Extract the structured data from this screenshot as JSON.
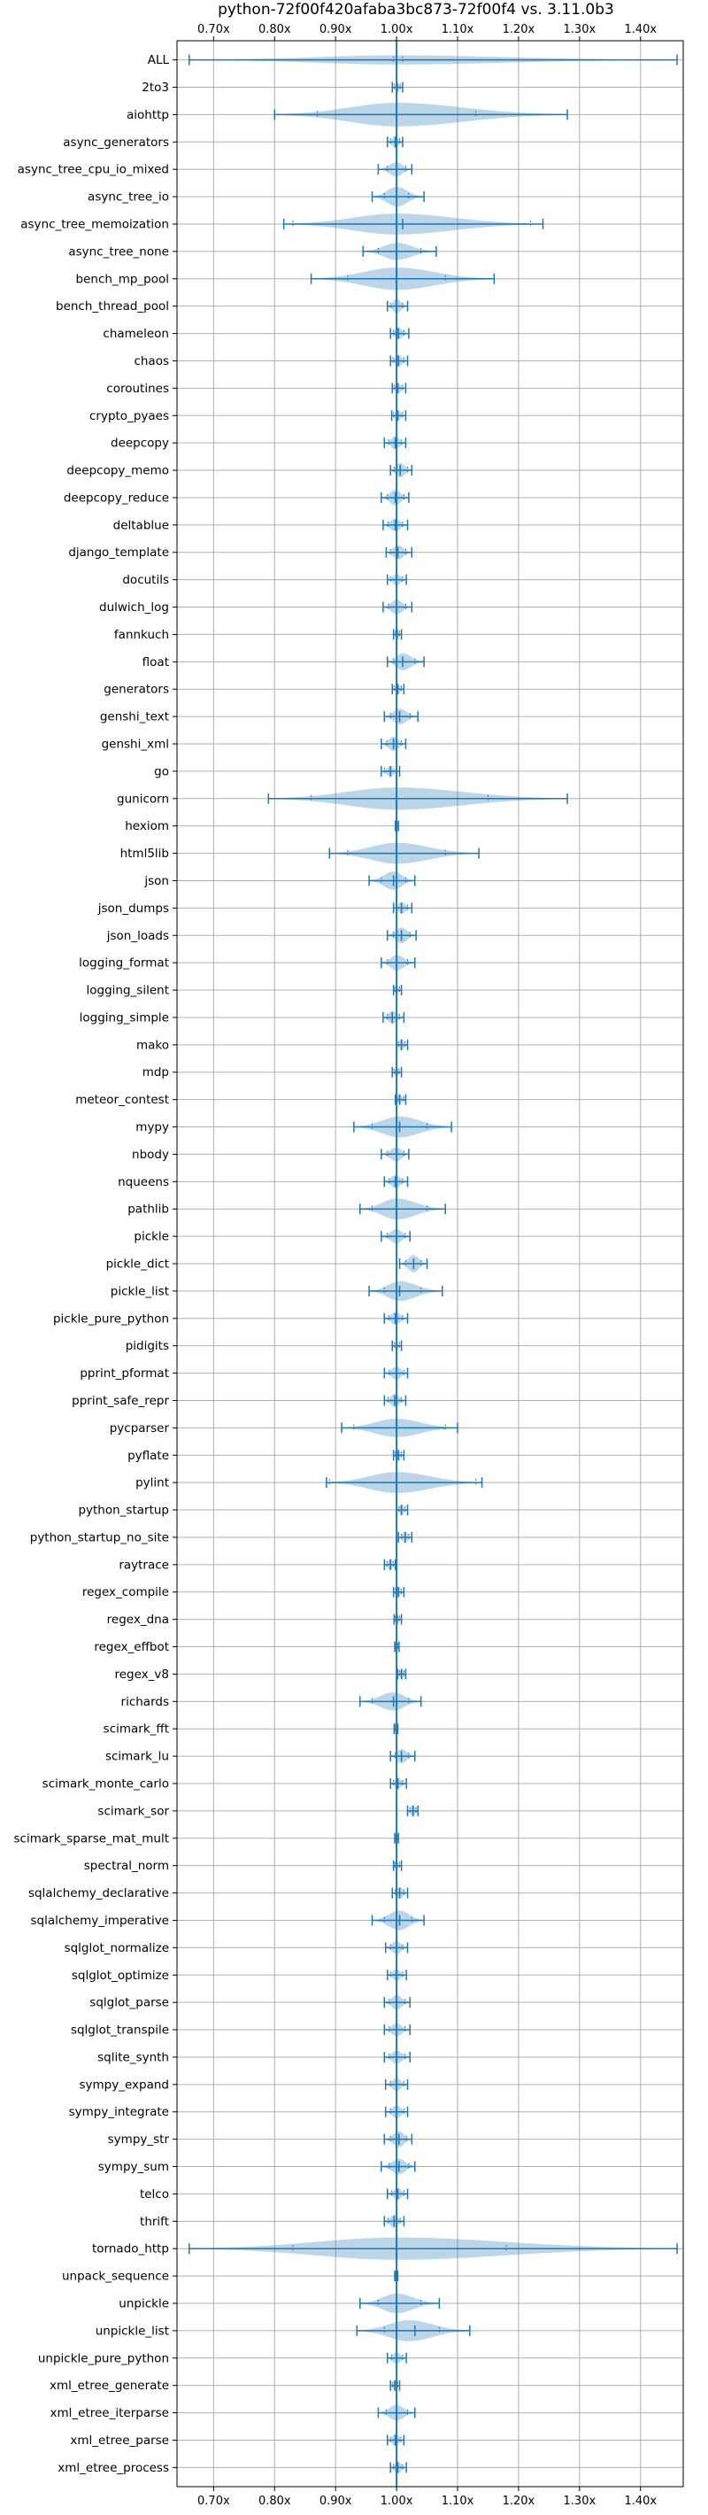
{
  "chart_data": {
    "type": "violin",
    "title": "python-72f00f420afaba3bc873-72f00f4 vs. 3.11.0b3",
    "xlabel": "",
    "ylabel": "",
    "xlim": [
      0.64,
      1.47
    ],
    "xticks": [
      0.7,
      0.8,
      0.9,
      1.0,
      1.1,
      1.2,
      1.3,
      1.4
    ],
    "xtick_labels": [
      "0.70x",
      "0.80x",
      "0.90x",
      "1.00x",
      "1.10x",
      "1.20x",
      "1.30x",
      "1.40x"
    ],
    "xaxis_position": "top-and-bottom",
    "grid": true,
    "baseline": 1.0,
    "categories": [
      "ALL",
      "2to3",
      "aiohttp",
      "async_generators",
      "async_tree_cpu_io_mixed",
      "async_tree_io",
      "async_tree_memoization",
      "async_tree_none",
      "bench_mp_pool",
      "bench_thread_pool",
      "chameleon",
      "chaos",
      "coroutines",
      "crypto_pyaes",
      "deepcopy",
      "deepcopy_memo",
      "deepcopy_reduce",
      "deltablue",
      "django_template",
      "docutils",
      "dulwich_log",
      "fannkuch",
      "float",
      "generators",
      "genshi_text",
      "genshi_xml",
      "go",
      "gunicorn",
      "hexiom",
      "html5lib",
      "json",
      "json_dumps",
      "json_loads",
      "logging_format",
      "logging_silent",
      "logging_simple",
      "mako",
      "mdp",
      "meteor_contest",
      "mypy",
      "nbody",
      "nqueens",
      "pathlib",
      "pickle",
      "pickle_dict",
      "pickle_list",
      "pickle_pure_python",
      "pidigits",
      "pprint_pformat",
      "pprint_safe_repr",
      "pycparser",
      "pyflate",
      "pylint",
      "python_startup",
      "python_startup_no_site",
      "raytrace",
      "regex_compile",
      "regex_dna",
      "regex_effbot",
      "regex_v8",
      "richards",
      "scimark_fft",
      "scimark_lu",
      "scimark_monte_carlo",
      "scimark_sor",
      "scimark_sparse_mat_mult",
      "spectral_norm",
      "sqlalchemy_declarative",
      "sqlalchemy_imperative",
      "sqlglot_normalize",
      "sqlglot_optimize",
      "sqlglot_parse",
      "sqlglot_transpile",
      "sqlite_synth",
      "sympy_expand",
      "sympy_integrate",
      "sympy_str",
      "sympy_sum",
      "telco",
      "thrift",
      "tornado_http",
      "unpack_sequence",
      "unpickle",
      "unpickle_list",
      "unpickle_pure_python",
      "xml_etree_generate",
      "xml_etree_iterparse",
      "xml_etree_parse",
      "xml_etree_process"
    ],
    "series": [
      {
        "min": 0.66,
        "max": 1.46,
        "q1": 0.995,
        "q3": 1.01,
        "center": 1.0,
        "peak": 1.0,
        "width": 0.35
      },
      {
        "min": 0.993,
        "max": 1.01,
        "q1": 0.996,
        "q3": 1.006,
        "center": 1.001,
        "peak": 1.001,
        "width": 0.3
      },
      {
        "min": 0.8,
        "max": 1.28,
        "q1": 0.87,
        "q3": 1.13,
        "center": 1.0,
        "peak": 1.0,
        "width": 0.9
      },
      {
        "min": 0.985,
        "max": 1.01,
        "q1": 0.99,
        "q3": 1.005,
        "center": 0.998,
        "peak": 0.998,
        "width": 0.45
      },
      {
        "min": 0.97,
        "max": 1.025,
        "q1": 0.985,
        "q3": 1.015,
        "center": 1.0,
        "peak": 1.0,
        "width": 0.55
      },
      {
        "min": 0.96,
        "max": 1.045,
        "q1": 0.98,
        "q3": 1.02,
        "center": 1.0,
        "peak": 1.0,
        "width": 0.75
      },
      {
        "min": 0.815,
        "max": 1.24,
        "q1": 0.83,
        "q3": 1.22,
        "center": 1.01,
        "peak": 1.0,
        "width": 0.8
      },
      {
        "min": 0.945,
        "max": 1.065,
        "q1": 0.97,
        "q3": 1.04,
        "center": 1.0,
        "peak": 1.0,
        "width": 0.65
      },
      {
        "min": 0.86,
        "max": 1.16,
        "q1": 0.92,
        "q3": 1.08,
        "center": 1.0,
        "peak": 1.0,
        "width": 0.85
      },
      {
        "min": 0.985,
        "max": 1.018,
        "q1": 0.99,
        "q3": 1.01,
        "center": 1.0,
        "peak": 1.0,
        "width": 0.55
      },
      {
        "min": 0.99,
        "max": 1.02,
        "q1": 0.995,
        "q3": 1.012,
        "center": 1.003,
        "peak": 1.003,
        "width": 0.45
      },
      {
        "min": 0.99,
        "max": 1.018,
        "q1": 0.994,
        "q3": 1.012,
        "center": 1.003,
        "peak": 1.003,
        "width": 0.45
      },
      {
        "min": 0.993,
        "max": 1.015,
        "q1": 0.996,
        "q3": 1.01,
        "center": 1.002,
        "peak": 1.002,
        "width": 0.4
      },
      {
        "min": 0.992,
        "max": 1.015,
        "q1": 0.995,
        "q3": 1.01,
        "center": 1.002,
        "peak": 1.002,
        "width": 0.4
      },
      {
        "min": 0.98,
        "max": 1.015,
        "q1": 0.987,
        "q3": 1.008,
        "center": 0.998,
        "peak": 0.998,
        "width": 0.5
      },
      {
        "min": 0.99,
        "max": 1.025,
        "q1": 0.996,
        "q3": 1.018,
        "center": 1.006,
        "peak": 1.006,
        "width": 0.55
      },
      {
        "min": 0.975,
        "max": 1.02,
        "q1": 0.985,
        "q3": 1.012,
        "center": 0.998,
        "peak": 0.998,
        "width": 0.6
      },
      {
        "min": 0.978,
        "max": 1.018,
        "q1": 0.986,
        "q3": 1.01,
        "center": 0.998,
        "peak": 0.998,
        "width": 0.5
      },
      {
        "min": 0.983,
        "max": 1.025,
        "q1": 0.99,
        "q3": 1.015,
        "center": 1.002,
        "peak": 1.002,
        "width": 0.55
      },
      {
        "min": 0.985,
        "max": 1.016,
        "q1": 0.99,
        "q3": 1.01,
        "center": 1.0,
        "peak": 1.0,
        "width": 0.45
      },
      {
        "min": 0.978,
        "max": 1.025,
        "q1": 0.987,
        "q3": 1.015,
        "center": 1.0,
        "peak": 1.0,
        "width": 0.55
      },
      {
        "min": 0.995,
        "max": 1.008,
        "q1": 0.998,
        "q3": 1.005,
        "center": 1.001,
        "peak": 1.001,
        "width": 0.35
      },
      {
        "min": 0.985,
        "max": 1.045,
        "q1": 0.995,
        "q3": 1.03,
        "center": 1.01,
        "peak": 1.01,
        "width": 0.65
      },
      {
        "min": 0.993,
        "max": 1.012,
        "q1": 0.996,
        "q3": 1.008,
        "center": 1.002,
        "peak": 1.002,
        "width": 0.4
      },
      {
        "min": 0.98,
        "max": 1.035,
        "q1": 0.99,
        "q3": 1.022,
        "center": 1.005,
        "peak": 1.005,
        "width": 0.6
      },
      {
        "min": 0.975,
        "max": 1.015,
        "q1": 0.984,
        "q3": 1.008,
        "center": 0.995,
        "peak": 0.995,
        "width": 0.55
      },
      {
        "min": 0.975,
        "max": 1.005,
        "q1": 0.98,
        "q3": 1.0,
        "center": 0.99,
        "peak": 0.99,
        "width": 0.4
      },
      {
        "min": 0.79,
        "max": 1.28,
        "q1": 0.86,
        "q3": 1.15,
        "center": 1.0,
        "peak": 1.0,
        "width": 0.85
      },
      {
        "min": 0.998,
        "max": 1.003,
        "q1": 0.999,
        "q3": 1.002,
        "center": 1.0,
        "peak": 1.0,
        "width": 0.25
      },
      {
        "min": 0.89,
        "max": 1.135,
        "q1": 0.92,
        "q3": 1.08,
        "center": 1.0,
        "peak": 1.0,
        "width": 0.8
      },
      {
        "min": 0.955,
        "max": 1.03,
        "q1": 0.975,
        "q3": 1.015,
        "center": 0.995,
        "peak": 0.995,
        "width": 0.7
      },
      {
        "min": 0.995,
        "max": 1.025,
        "q1": 1.0,
        "q3": 1.018,
        "center": 1.008,
        "peak": 1.008,
        "width": 0.45
      },
      {
        "min": 0.985,
        "max": 1.032,
        "q1": 0.995,
        "q3": 1.022,
        "center": 1.008,
        "peak": 1.008,
        "width": 0.6
      },
      {
        "min": 0.975,
        "max": 1.03,
        "q1": 0.985,
        "q3": 1.018,
        "center": 1.0,
        "peak": 1.0,
        "width": 0.6
      },
      {
        "min": 0.995,
        "max": 1.008,
        "q1": 0.997,
        "q3": 1.005,
        "center": 1.0,
        "peak": 1.0,
        "width": 0.35
      },
      {
        "min": 0.978,
        "max": 1.012,
        "q1": 0.985,
        "q3": 1.005,
        "center": 0.993,
        "peak": 0.993,
        "width": 0.5
      },
      {
        "min": 1.0,
        "max": 1.018,
        "q1": 1.003,
        "q3": 1.014,
        "center": 1.008,
        "peak": 1.008,
        "width": 0.45
      },
      {
        "min": 0.993,
        "max": 1.008,
        "q1": 0.996,
        "q3": 1.004,
        "center": 1.0,
        "peak": 1.0,
        "width": 0.35
      },
      {
        "min": 0.998,
        "max": 1.015,
        "q1": 1.001,
        "q3": 1.012,
        "center": 1.005,
        "peak": 1.005,
        "width": 0.4
      },
      {
        "min": 0.93,
        "max": 1.09,
        "q1": 0.96,
        "q3": 1.05,
        "center": 1.005,
        "peak": 1.005,
        "width": 0.8
      },
      {
        "min": 0.975,
        "max": 1.02,
        "q1": 0.985,
        "q3": 1.012,
        "center": 1.0,
        "peak": 1.0,
        "width": 0.55
      },
      {
        "min": 0.98,
        "max": 1.018,
        "q1": 0.988,
        "q3": 1.01,
        "center": 0.998,
        "peak": 0.998,
        "width": 0.5
      },
      {
        "min": 0.94,
        "max": 1.08,
        "q1": 0.96,
        "q3": 1.05,
        "center": 1.0,
        "peak": 1.0,
        "width": 0.8
      },
      {
        "min": 0.975,
        "max": 1.022,
        "q1": 0.985,
        "q3": 1.014,
        "center": 1.0,
        "peak": 1.0,
        "width": 0.55
      },
      {
        "min": 1.005,
        "max": 1.05,
        "q1": 1.015,
        "q3": 1.04,
        "center": 1.028,
        "peak": 1.028,
        "width": 0.65
      },
      {
        "min": 0.955,
        "max": 1.075,
        "q1": 0.98,
        "q3": 1.04,
        "center": 1.005,
        "peak": 1.005,
        "width": 0.75
      },
      {
        "min": 0.98,
        "max": 1.018,
        "q1": 0.987,
        "q3": 1.01,
        "center": 0.998,
        "peak": 0.998,
        "width": 0.5
      },
      {
        "min": 0.993,
        "max": 1.008,
        "q1": 0.996,
        "q3": 1.005,
        "center": 1.0,
        "peak": 1.0,
        "width": 0.35
      },
      {
        "min": 0.98,
        "max": 1.018,
        "q1": 0.988,
        "q3": 1.012,
        "center": 1.0,
        "peak": 1.0,
        "width": 0.5
      },
      {
        "min": 0.98,
        "max": 1.015,
        "q1": 0.986,
        "q3": 1.008,
        "center": 0.997,
        "peak": 0.997,
        "width": 0.5
      },
      {
        "min": 0.91,
        "max": 1.1,
        "q1": 0.93,
        "q3": 1.08,
        "center": 1.0,
        "peak": 1.0,
        "width": 0.7
      },
      {
        "min": 0.995,
        "max": 1.012,
        "q1": 0.998,
        "q3": 1.008,
        "center": 1.003,
        "peak": 1.003,
        "width": 0.4
      },
      {
        "min": 0.885,
        "max": 1.14,
        "q1": 0.89,
        "q3": 1.13,
        "center": 1.0,
        "peak": 1.0,
        "width": 0.8
      },
      {
        "min": 1.0,
        "max": 1.018,
        "q1": 1.004,
        "q3": 1.014,
        "center": 1.008,
        "peak": 1.008,
        "width": 0.4
      },
      {
        "min": 1.003,
        "max": 1.025,
        "q1": 1.008,
        "q3": 1.02,
        "center": 1.014,
        "peak": 1.014,
        "width": 0.45
      },
      {
        "min": 0.98,
        "max": 0.998,
        "q1": 0.984,
        "q3": 0.995,
        "center": 0.99,
        "peak": 0.99,
        "width": 0.45
      },
      {
        "min": 0.995,
        "max": 1.012,
        "q1": 0.998,
        "q3": 1.008,
        "center": 1.003,
        "peak": 1.003,
        "width": 0.4
      },
      {
        "min": 0.996,
        "max": 1.008,
        "q1": 0.998,
        "q3": 1.005,
        "center": 1.001,
        "peak": 1.001,
        "width": 0.35
      },
      {
        "min": 0.997,
        "max": 1.004,
        "q1": 0.998,
        "q3": 1.002,
        "center": 1.0,
        "peak": 1.0,
        "width": 0.3
      },
      {
        "min": 1.002,
        "max": 1.015,
        "q1": 1.005,
        "q3": 1.012,
        "center": 1.008,
        "peak": 1.008,
        "width": 0.4
      },
      {
        "min": 0.94,
        "max": 1.04,
        "q1": 0.96,
        "q3": 1.02,
        "center": 0.995,
        "peak": 0.995,
        "width": 0.7
      },
      {
        "min": 0.996,
        "max": 1.002,
        "q1": 0.997,
        "q3": 1.001,
        "center": 0.999,
        "peak": 0.999,
        "width": 0.3
      },
      {
        "min": 0.99,
        "max": 1.03,
        "q1": 0.998,
        "q3": 1.02,
        "center": 1.008,
        "peak": 1.008,
        "width": 0.55
      },
      {
        "min": 0.99,
        "max": 1.016,
        "q1": 0.995,
        "q3": 1.01,
        "center": 1.002,
        "peak": 1.002,
        "width": 0.45
      },
      {
        "min": 1.018,
        "max": 1.035,
        "q1": 1.022,
        "q3": 1.032,
        "center": 1.027,
        "peak": 1.027,
        "width": 0.45
      },
      {
        "min": 0.997,
        "max": 1.003,
        "q1": 0.998,
        "q3": 1.002,
        "center": 1.0,
        "peak": 1.0,
        "width": 0.3
      },
      {
        "min": 0.995,
        "max": 1.008,
        "q1": 0.997,
        "q3": 1.005,
        "center": 1.0,
        "peak": 1.0,
        "width": 0.35
      },
      {
        "min": 0.993,
        "max": 1.018,
        "q1": 0.998,
        "q3": 1.012,
        "center": 1.005,
        "peak": 1.005,
        "width": 0.45
      },
      {
        "min": 0.96,
        "max": 1.045,
        "q1": 0.98,
        "q3": 1.025,
        "center": 1.005,
        "peak": 1.005,
        "width": 0.75
      },
      {
        "min": 0.982,
        "max": 1.018,
        "q1": 0.99,
        "q3": 1.01,
        "center": 1.0,
        "peak": 1.0,
        "width": 0.5
      },
      {
        "min": 0.985,
        "max": 1.016,
        "q1": 0.99,
        "q3": 1.01,
        "center": 1.0,
        "peak": 1.0,
        "width": 0.45
      },
      {
        "min": 0.98,
        "max": 1.022,
        "q1": 0.988,
        "q3": 1.014,
        "center": 1.0,
        "peak": 1.0,
        "width": 0.55
      },
      {
        "min": 0.98,
        "max": 1.022,
        "q1": 0.988,
        "q3": 1.014,
        "center": 1.0,
        "peak": 1.0,
        "width": 0.5
      },
      {
        "min": 0.98,
        "max": 1.022,
        "q1": 0.988,
        "q3": 1.014,
        "center": 1.0,
        "peak": 1.0,
        "width": 0.5
      },
      {
        "min": 0.982,
        "max": 1.018,
        "q1": 0.99,
        "q3": 1.012,
        "center": 1.0,
        "peak": 1.0,
        "width": 0.5
      },
      {
        "min": 0.982,
        "max": 1.018,
        "q1": 0.99,
        "q3": 1.012,
        "center": 1.0,
        "peak": 1.0,
        "width": 0.5
      },
      {
        "min": 0.98,
        "max": 1.025,
        "q1": 0.99,
        "q3": 1.016,
        "center": 1.004,
        "peak": 1.004,
        "width": 0.6
      },
      {
        "min": 0.975,
        "max": 1.03,
        "q1": 0.988,
        "q3": 1.02,
        "center": 1.004,
        "peak": 1.004,
        "width": 0.6
      },
      {
        "min": 0.985,
        "max": 1.018,
        "q1": 0.992,
        "q3": 1.012,
        "center": 1.002,
        "peak": 1.002,
        "width": 0.45
      },
      {
        "min": 0.98,
        "max": 1.012,
        "q1": 0.986,
        "q3": 1.006,
        "center": 0.996,
        "peak": 0.996,
        "width": 0.5
      },
      {
        "min": 0.66,
        "max": 1.46,
        "q1": 0.83,
        "q3": 1.18,
        "center": 1.0,
        "peak": 1.0,
        "width": 0.85
      },
      {
        "min": 0.997,
        "max": 1.002,
        "q1": 0.998,
        "q3": 1.001,
        "center": 0.999,
        "peak": 0.999,
        "width": 0.3
      },
      {
        "min": 0.94,
        "max": 1.07,
        "q1": 0.97,
        "q3": 1.04,
        "center": 1.0,
        "peak": 1.0,
        "width": 0.75
      },
      {
        "min": 0.935,
        "max": 1.12,
        "q1": 0.98,
        "q3": 1.07,
        "center": 1.03,
        "peak": 1.02,
        "width": 0.8
      },
      {
        "min": 0.985,
        "max": 1.016,
        "q1": 0.992,
        "q3": 1.01,
        "center": 1.0,
        "peak": 1.0,
        "width": 0.45
      },
      {
        "min": 0.99,
        "max": 1.005,
        "q1": 0.993,
        "q3": 1.002,
        "center": 0.997,
        "peak": 0.997,
        "width": 0.4
      },
      {
        "min": 0.97,
        "max": 1.03,
        "q1": 0.983,
        "q3": 1.018,
        "center": 1.0,
        "peak": 1.0,
        "width": 0.6
      },
      {
        "min": 0.985,
        "max": 1.012,
        "q1": 0.99,
        "q3": 1.007,
        "center": 0.998,
        "peak": 0.998,
        "width": 0.45
      },
      {
        "min": 0.99,
        "max": 1.016,
        "q1": 0.995,
        "q3": 1.01,
        "center": 1.002,
        "peak": 1.002,
        "width": 0.45
      }
    ]
  }
}
